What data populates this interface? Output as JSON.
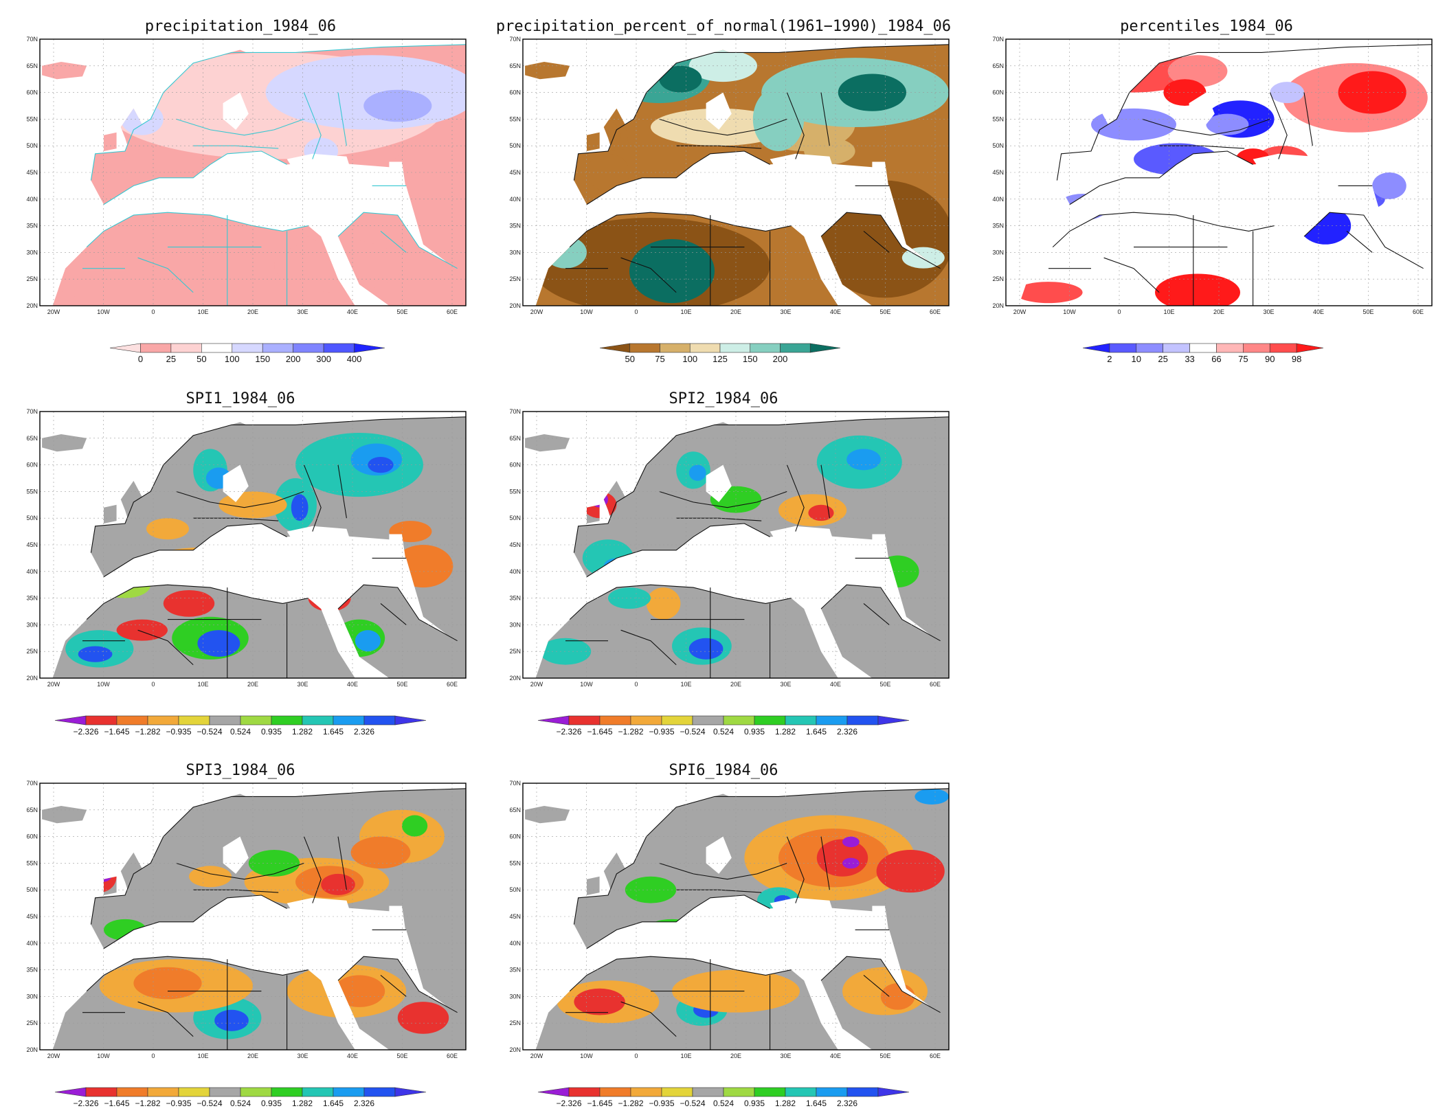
{
  "map_frame": {
    "lon_labels": [
      "20W",
      "10W",
      "0",
      "10E",
      "20E",
      "30E",
      "40E",
      "50E",
      "60E"
    ],
    "lat_labels": [
      "70N",
      "65N",
      "60N",
      "55N",
      "50N",
      "45N",
      "40N",
      "35N",
      "30N",
      "25N",
      "20N"
    ]
  },
  "palettes": {
    "precip": [
      "#fce0e0",
      "#f9a7a7",
      "#fdd2d2",
      "#ffffff",
      "#d6d8ff",
      "#aab0ff",
      "#7f84ff",
      "#4f57ff",
      "#1f24ff"
    ],
    "pct": [
      "#8b5316",
      "#b8772f",
      "#d6b06a",
      "#efdcb0",
      "#cdeee6",
      "#86cfc0",
      "#3aa595",
      "#0b6e61"
    ],
    "pctl": [
      "#2222ff",
      "#5a5aff",
      "#8d8dff",
      "#c3c3ff",
      "#ffffff",
      "#ffb7b7",
      "#ff8787",
      "#ff4d4d",
      "#ff1a1a"
    ],
    "spi": [
      "#9a1dd6",
      "#e8322f",
      "#f07c2a",
      "#f2a93a",
      "#e3d43a",
      "#a6a6a6",
      "#9fd943",
      "#2fce23",
      "#24c6b4",
      "#1a9cf0",
      "#2253f0",
      "#3e35e8"
    ]
  },
  "panels": [
    {
      "id": "precip",
      "title": "precipitation_1984_06",
      "palette": "precip",
      "colorbar_labels": [
        "0",
        "25",
        "50",
        "100",
        "150",
        "200",
        "300",
        "400"
      ]
    },
    {
      "id": "pct",
      "title": "precipitation_percent_of_normal(1961−1990)_1984_06",
      "palette": "pct",
      "colorbar_labels": [
        "50",
        "75",
        "100",
        "125",
        "150",
        "200"
      ]
    },
    {
      "id": "pctl",
      "title": "percentiles_1984_06",
      "palette": "pctl",
      "colorbar_labels": [
        "2",
        "10",
        "25",
        "33",
        "66",
        "75",
        "90",
        "98"
      ]
    },
    {
      "id": "spi1",
      "title": "SPI1_1984_06",
      "palette": "spi",
      "colorbar_labels": [
        "−2.326",
        "−1.645",
        "−1.282",
        "−0.935",
        "−0.524",
        "0.524",
        "0.935",
        "1.282",
        "1.645",
        "2.326"
      ]
    },
    {
      "id": "spi2",
      "title": "SPI2_1984_06",
      "palette": "spi",
      "colorbar_labels": [
        "−2.326",
        "−1.645",
        "−1.282",
        "−0.935",
        "−0.524",
        "0.524",
        "0.935",
        "1.282",
        "1.645",
        "2.326"
      ]
    },
    {
      "id": "spi3",
      "title": "SPI3_1984_06",
      "palette": "spi",
      "colorbar_labels": [
        "−2.326",
        "−1.645",
        "−1.282",
        "−0.935",
        "−0.524",
        "0.524",
        "0.935",
        "1.282",
        "1.645",
        "2.326"
      ]
    },
    {
      "id": "spi6",
      "title": "SPI6_1984_06",
      "palette": "spi",
      "colorbar_labels": [
        "−2.326",
        "−1.645",
        "−1.282",
        "−0.935",
        "−0.524",
        "0.524",
        "0.935",
        "1.282",
        "1.645",
        "2.326"
      ]
    }
  ]
}
